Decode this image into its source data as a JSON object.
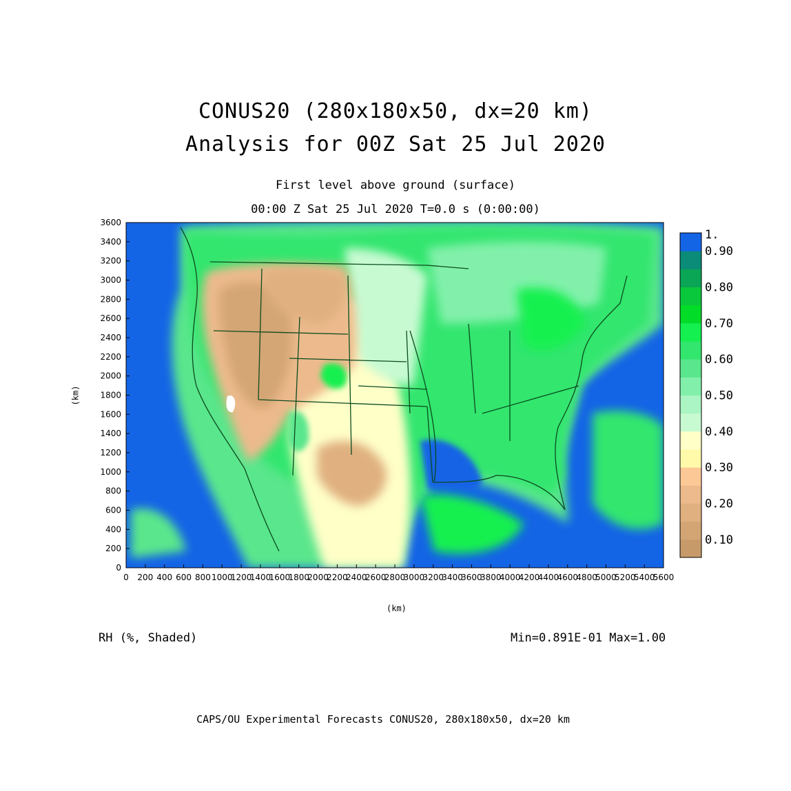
{
  "title_line1": "CONUS20 (280x180x50, dx=20 km)",
  "title_line2": "Analysis for 00Z Sat 25 Jul 2020",
  "subtitle_line1": "First level above ground (surface)",
  "subtitle_line2": "00:00 Z Sat 25 Jul 2020    T=0.0 s (0:00:00)",
  "y_axis_label": "(km)",
  "x_axis_label": "(km)",
  "variable_label": "RH (%, Shaded)",
  "minmax_label": "Min=0.891E-01 Max=1.00",
  "footer": "CAPS/OU Experimental Forecasts  CONUS20, 280x180x50, dx=20 km",
  "colors": {
    "ocean": "#1464e6",
    "state_lines": "#0b4a1e"
  },
  "chart_data": {
    "type": "heatmap",
    "variable": "RH",
    "x": {
      "range": [
        0,
        5600
      ],
      "ticks": [
        0,
        200,
        400,
        600,
        800,
        1000,
        1200,
        1400,
        1600,
        1800,
        2000,
        2200,
        2400,
        2600,
        2800,
        3000,
        3200,
        3400,
        3600,
        3800,
        4000,
        4200,
        4400,
        4600,
        4800,
        5000,
        5200,
        5400,
        5600
      ]
    },
    "y": {
      "range": [
        0,
        3600
      ],
      "ticks": [
        0,
        200,
        400,
        600,
        800,
        1000,
        1200,
        1400,
        1600,
        1800,
        2000,
        2200,
        2400,
        2600,
        2800,
        3000,
        3200,
        3400,
        3600
      ]
    },
    "min": 0.0891,
    "max": 1.0,
    "colorbar": [
      {
        "label": "0.10",
        "color": "#c79a6a"
      },
      {
        "label": "",
        "color": "#d4a574"
      },
      {
        "label": "0.20",
        "color": "#e0b080"
      },
      {
        "label": "",
        "color": "#ecba8c"
      },
      {
        "label": "0.30",
        "color": "#fcc896"
      },
      {
        "label": "",
        "color": "#fffaaa"
      },
      {
        "label": "0.40",
        "color": "#ffffc8"
      },
      {
        "label": "",
        "color": "#c8fad2"
      },
      {
        "label": "0.50",
        "color": "#aaf5c3"
      },
      {
        "label": "",
        "color": "#82f0aa"
      },
      {
        "label": "0.60",
        "color": "#5ae68c"
      },
      {
        "label": "",
        "color": "#32e66e"
      },
      {
        "label": "0.70",
        "color": "#14f050"
      },
      {
        "label": "",
        "color": "#00dc28"
      },
      {
        "label": "0.80",
        "color": "#0ac83c"
      },
      {
        "label": "",
        "color": "#0aa555"
      },
      {
        "label": "0.90",
        "color": "#0a8c78"
      },
      {
        "label": "1.",
        "color": "#1464e6"
      }
    ]
  }
}
